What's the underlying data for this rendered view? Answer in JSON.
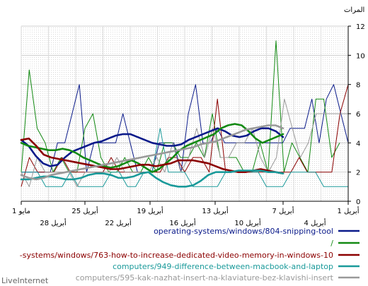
{
  "chart_data": {
    "type": "line",
    "ylabel": "المرات",
    "ylim": [
      0,
      12
    ],
    "yticks": [
      "0",
      "2",
      "4",
      "6",
      "8",
      "10",
      "12"
    ],
    "grid": true,
    "x_tick_labels_upper": [
      "1 مايو",
      "25 أبريل",
      "19 أبريل",
      "13 أبريل",
      "7 أبريل",
      "1 أبريل"
    ],
    "x_tick_labels_lower": [
      "28 أبريل",
      "22 أبريل",
      "16 أبريل",
      "10 أبريل",
      "4 أبريل"
    ],
    "legend_position": "bottom",
    "series": [
      {
        "name": "operating-systems/windows/804-snipping-tool",
        "color": "#0a1a8a",
        "daily": [
          2,
          2,
          2,
          2,
          2,
          4,
          4,
          6,
          8,
          2,
          4,
          4,
          4,
          4,
          6,
          4,
          2,
          2,
          2,
          4,
          4,
          4,
          2,
          6,
          8,
          4,
          4,
          5,
          4,
          4,
          4,
          4,
          4,
          4,
          4,
          4,
          4,
          5,
          5,
          5,
          7,
          4,
          7,
          8,
          6,
          4
        ],
        "avg": [
          4.2,
          3.8,
          3.1,
          2.6,
          2.4,
          2.5,
          3.0,
          3.4,
          3.6,
          3.8,
          4.0,
          4.1,
          4.3,
          4.5,
          4.6,
          4.6,
          4.4,
          4.2,
          4.0,
          3.9,
          3.8,
          3.8,
          3.9,
          4.2,
          4.4,
          4.6,
          4.8,
          5.0,
          4.8,
          4.5,
          4.4,
          4.5,
          4.8,
          5.0,
          5.0,
          4.8,
          4.4
        ]
      },
      {
        "name": "/",
        "color": "#138a13",
        "daily": [
          2,
          9,
          5,
          4,
          2,
          3,
          2,
          2,
          5,
          6,
          3,
          2,
          2,
          3,
          2,
          2,
          3,
          2,
          4,
          4,
          3,
          3,
          4,
          3,
          6,
          3,
          3,
          3,
          2,
          2,
          4,
          2,
          11,
          2,
          4,
          3,
          2,
          7,
          7,
          3,
          4
        ],
        "avg": [
          4.0,
          3.8,
          3.7,
          3.6,
          3.5,
          3.5,
          3.6,
          3.5,
          3.3,
          3.0,
          2.8,
          2.6,
          2.4,
          2.3,
          2.4,
          2.6,
          2.8,
          2.6,
          2.3,
          2.0,
          2.2,
          2.6,
          3.0,
          3.5,
          3.8,
          4.0,
          4.2,
          4.4,
          4.6,
          5.0,
          5.2,
          5.3,
          5.2,
          4.8,
          4.3,
          4.0,
          4.2,
          4.4,
          4.6
        ]
      },
      {
        "name": "-systems/windows/763-how-to-increase-dedicated-video-memory-in-windows-10",
        "color": "#8b0000",
        "daily": [
          1,
          3,
          2,
          2,
          2,
          3,
          2,
          2,
          2,
          2,
          2,
          3,
          2,
          2,
          2,
          2,
          2,
          2,
          3,
          3,
          2,
          3,
          3,
          2,
          7,
          2,
          2,
          2,
          2,
          2,
          2,
          2,
          2,
          2,
          3,
          2,
          2,
          2,
          2,
          6,
          8
        ],
        "avg": [
          4.2,
          4.3,
          3.8,
          3.2,
          3.0,
          2.9,
          2.8,
          2.7,
          2.6,
          2.5,
          2.4,
          2.3,
          2.2,
          2.2,
          2.3,
          2.4,
          2.5,
          2.5,
          2.4,
          2.5,
          2.6,
          2.8,
          2.8,
          2.8,
          2.7,
          2.6,
          2.4,
          2.2,
          2.1,
          2.0,
          2.0,
          2.1,
          2.2,
          2.1,
          2.0,
          1.9
        ]
      },
      {
        "name": "computers/949-difference-between-macbook-and-laptop",
        "color": "#1a9a9a",
        "daily": [
          2,
          2,
          2,
          1,
          1,
          1,
          2,
          1,
          1,
          1,
          1,
          2,
          2,
          1,
          1,
          2,
          2,
          5,
          2,
          2,
          2,
          1,
          1,
          1,
          1,
          2,
          2,
          2,
          2,
          2,
          1,
          1,
          1,
          2,
          2,
          2,
          2,
          1,
          1,
          1,
          1
        ],
        "avg": [
          1.5,
          1.5,
          1.6,
          1.7,
          1.7,
          1.6,
          1.5,
          1.5,
          1.6,
          1.8,
          1.9,
          1.9,
          1.8,
          1.6,
          1.6,
          1.7,
          1.9,
          2.0,
          1.6,
          1.3,
          1.1,
          1.0,
          1.0,
          1.1,
          1.4,
          1.8,
          2.0,
          2.0,
          2.0,
          2.1,
          2.1,
          2.1,
          2.1,
          2.0,
          2.0,
          1.9
        ]
      },
      {
        "name": "computers/595-kak-nazhat-insert-na-klaviature-bez-klavishi-insert",
        "color": "#999999",
        "daily": [
          2,
          1,
          3,
          2,
          2,
          2,
          2,
          1,
          2,
          2,
          2,
          2,
          3,
          2,
          2,
          2,
          2,
          3,
          2,
          4,
          2,
          3,
          5,
          3,
          5,
          3,
          3,
          4,
          4,
          5,
          3,
          2,
          3,
          7,
          5,
          3,
          4,
          6,
          6,
          6,
          6,
          6
        ],
        "avg": [
          1.8,
          1.6,
          1.5,
          1.6,
          1.8,
          1.9,
          2.0,
          2.1,
          2.2,
          2.3,
          2.4,
          2.5,
          2.6,
          2.7,
          2.8,
          2.9,
          3.0,
          3.1,
          3.2,
          3.3,
          3.4,
          3.5,
          3.6,
          3.7,
          3.9,
          4.0,
          4.1,
          4.3,
          4.5,
          4.7,
          4.9,
          5.0,
          5.1,
          5.2,
          5.2,
          5.0
        ]
      }
    ]
  },
  "brand": "LiveInternet"
}
